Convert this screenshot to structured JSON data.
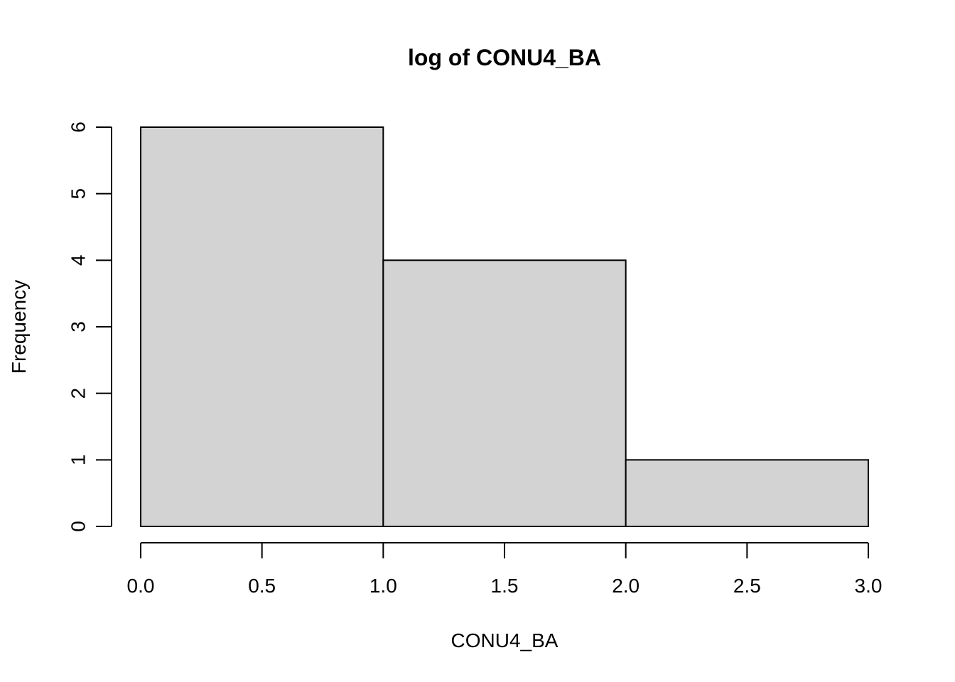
{
  "chart_data": {
    "type": "bar",
    "title": "log of CONU4_BA",
    "xlabel": "CONU4_BA",
    "ylabel": "Frequency",
    "bins": [
      {
        "start": 0.0,
        "end": 1.0,
        "count": 6
      },
      {
        "start": 1.0,
        "end": 2.0,
        "count": 4
      },
      {
        "start": 2.0,
        "end": 3.0,
        "count": 1
      }
    ],
    "xlim": [
      0,
      3
    ],
    "ylim": [
      0,
      6
    ],
    "x_ticks": [
      "0.0",
      "0.5",
      "1.0",
      "1.5",
      "2.0",
      "2.5",
      "3.0"
    ],
    "y_ticks": [
      "0",
      "1",
      "2",
      "3",
      "4",
      "5",
      "6"
    ],
    "bar_color": "#d3d3d3",
    "grid": false,
    "legend": "none"
  }
}
